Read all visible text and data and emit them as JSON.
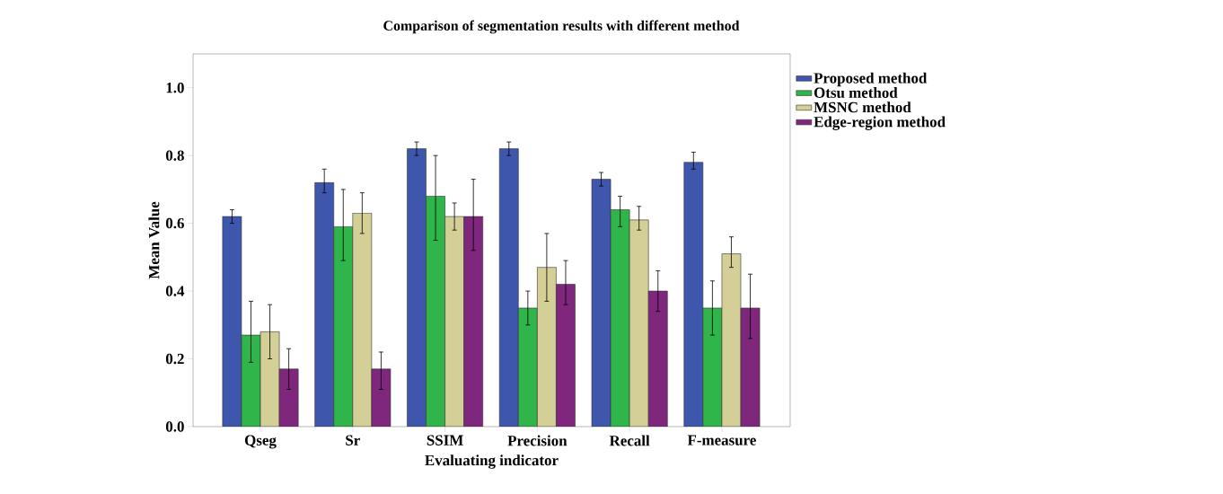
{
  "chart_data": {
    "type": "bar",
    "title": "Comparison of segmentation results with different method",
    "xlabel": "Evaluating indicator",
    "ylabel": "Mean Value",
    "categories": [
      "Qseg",
      "Sr",
      "SSIM",
      "Precision",
      "Recall",
      "F-measure"
    ],
    "series": [
      {
        "name": "Proposed method",
        "color": "#3f56ad",
        "values": [
          0.62,
          0.72,
          0.82,
          0.82,
          0.73,
          0.78
        ],
        "errors": [
          [
            0.6,
            0.64
          ],
          [
            0.69,
            0.76
          ],
          [
            0.8,
            0.84
          ],
          [
            0.8,
            0.84
          ],
          [
            0.71,
            0.75
          ],
          [
            0.76,
            0.81
          ]
        ]
      },
      {
        "name": "Otsu method",
        "color": "#30b54a",
        "values": [
          0.27,
          0.59,
          0.68,
          0.35,
          0.64,
          0.35
        ],
        "errors": [
          [
            0.19,
            0.37
          ],
          [
            0.49,
            0.7
          ],
          [
            0.55,
            0.8
          ],
          [
            0.3,
            0.4
          ],
          [
            0.59,
            0.68
          ],
          [
            0.27,
            0.43
          ]
        ]
      },
      {
        "name": "MSNC method",
        "color": "#d4cf96",
        "values": [
          0.28,
          0.63,
          0.62,
          0.47,
          0.61,
          0.51
        ],
        "errors": [
          [
            0.2,
            0.36
          ],
          [
            0.57,
            0.69
          ],
          [
            0.58,
            0.66
          ],
          [
            0.37,
            0.57
          ],
          [
            0.58,
            0.65
          ],
          [
            0.47,
            0.56
          ]
        ]
      },
      {
        "name": "Edge-region method",
        "color": "#7e277d",
        "values": [
          0.17,
          0.17,
          0.62,
          0.42,
          0.4,
          0.35
        ],
        "errors": [
          [
            0.11,
            0.23
          ],
          [
            0.11,
            0.22
          ],
          [
            0.52,
            0.73
          ],
          [
            0.36,
            0.49
          ],
          [
            0.34,
            0.46
          ],
          [
            0.26,
            0.45
          ]
        ]
      }
    ],
    "ylim": [
      0,
      1.1
    ],
    "yticks": [
      {
        "value": 0,
        "label": "0.0"
      },
      {
        "value": 0.2,
        "label": "0.2"
      },
      {
        "value": 0.4,
        "label": "0.4"
      },
      {
        "value": 0.6,
        "label": "0.6"
      },
      {
        "value": 0.8,
        "label": "0.8"
      },
      {
        "value": 1.0,
        "label": "1.0"
      }
    ],
    "grid": false,
    "legend": "top right"
  }
}
